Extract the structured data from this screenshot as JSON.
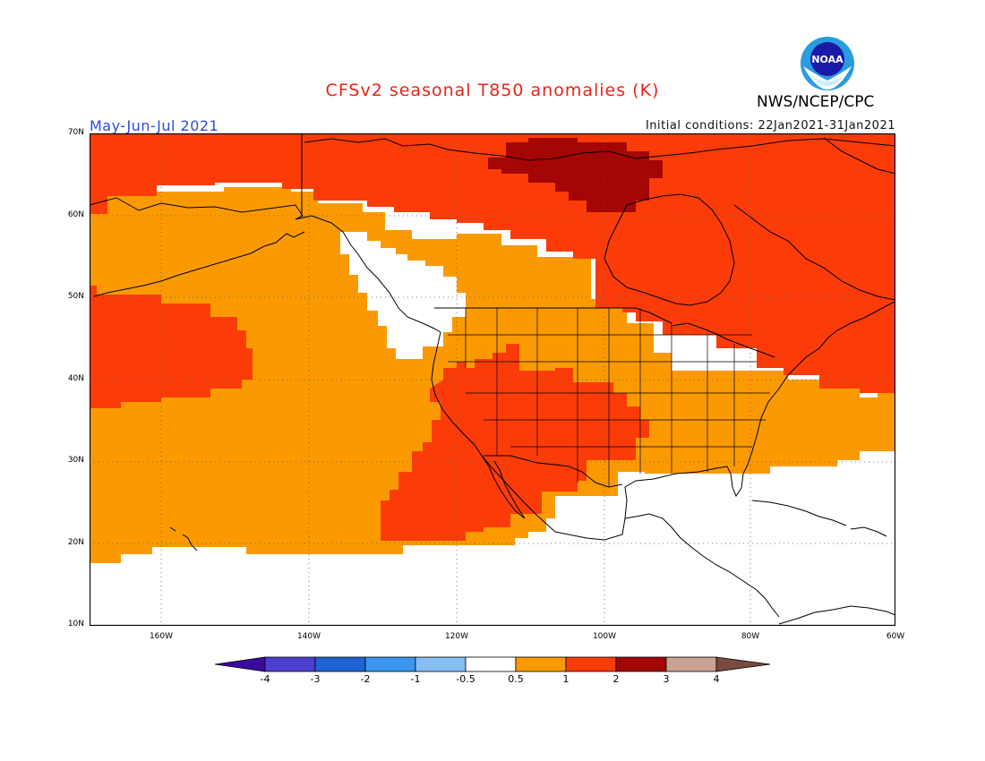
{
  "header": {
    "title": "CFSv2 seasonal T850 anomalies (K)",
    "period": "May-Jun-Jul 2021",
    "initial_conditions": "Initial conditions: 22Jan2021-31Jan2021",
    "agency": "NWS/NCEP/CPC",
    "logo_text": "NOAA"
  },
  "map": {
    "region": "North America and eastern Pacific",
    "lat_ticks": [
      "70N",
      "60N",
      "50N",
      "40N",
      "30N",
      "20N",
      "10N"
    ],
    "lon_ticks": [
      "160W",
      "140W",
      "120W",
      "100W",
      "80W",
      "60W"
    ],
    "graticule": "dotted",
    "levels": [
      {
        "range": "< -4",
        "color": "#3b0aa0"
      },
      {
        "range": "-4 to -3",
        "color": "#4b3fcf"
      },
      {
        "range": "-3 to -2",
        "color": "#1f64d2"
      },
      {
        "range": "-2 to -1",
        "color": "#3a96ee"
      },
      {
        "range": "-1 to -0.5",
        "color": "#86bdf3"
      },
      {
        "range": "-0.5 to 0.5",
        "color": "#ffffff"
      },
      {
        "range": "0.5 to 1",
        "color": "#fa9a00"
      },
      {
        "range": "1 to 2",
        "color": "#fb3c08"
      },
      {
        "range": "2 to 3",
        "color": "#a40505"
      },
      {
        "range": "3 to 4",
        "color": "#c9a394"
      },
      {
        "range": "> 4",
        "color": "#7a4a3e"
      }
    ]
  },
  "colorbar": {
    "labels": [
      "-4",
      "-3",
      "-2",
      "-1",
      "-0.5",
      "0.5",
      "1",
      "2",
      "3",
      "4"
    ]
  }
}
